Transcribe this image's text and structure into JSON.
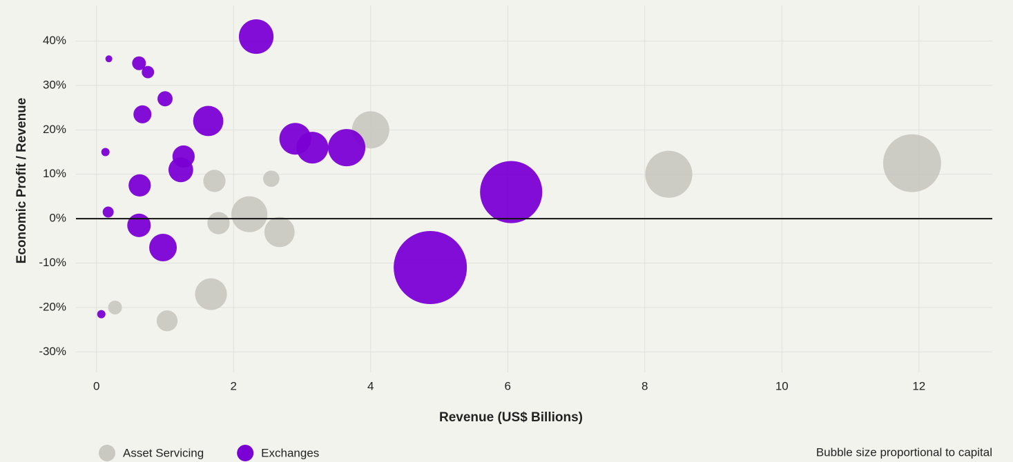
{
  "chart_data": {
    "type": "bubble",
    "x_label": "Revenue (US$ Billions)",
    "y_label": "Economic Profit / Revenue",
    "note": "Bubble size proportional to capital",
    "xlim": [
      -0.3,
      13.07
    ],
    "ylim": [
      -34.6,
      48
    ],
    "xticks": [
      0,
      2,
      4,
      6,
      8,
      10,
      12
    ],
    "yticks": [
      {
        "value": -30,
        "label": "-30%"
      },
      {
        "value": -20,
        "label": "-20%"
      },
      {
        "value": -10,
        "label": "-10%"
      },
      {
        "value": 0,
        "label": "0%"
      },
      {
        "value": 10,
        "label": "10%"
      },
      {
        "value": 20,
        "label": "20%"
      },
      {
        "value": 30,
        "label": "30%"
      },
      {
        "value": 40,
        "label": "40%"
      }
    ],
    "grid": true,
    "legend": "bottom-left",
    "series": [
      {
        "name": "Asset Servicing",
        "color": "#c9c8c1",
        "x": [
          4.0,
          1.72,
          2.55,
          2.23,
          1.78,
          2.67,
          1.67,
          0.27,
          1.03,
          8.35,
          11.9
        ],
        "values": [
          20,
          8.5,
          9,
          1,
          -1,
          -3,
          -17,
          -20,
          -23,
          10,
          12.5
        ],
        "sizes": [
          7.3,
          2.6,
          1.4,
          6.8,
          2.6,
          4.8,
          5.3,
          1.0,
          2.3,
          11.6,
          17.6
        ]
      },
      {
        "name": "Exchanges",
        "color": "#7a00d4",
        "x": [
          2.33,
          0.18,
          0.62,
          0.75,
          1.0,
          0.67,
          1.63,
          0.13,
          1.27,
          1.23,
          2.9,
          3.15,
          3.65,
          0.63,
          6.05,
          0.17,
          0.62,
          0.97,
          4.87,
          0.07
        ],
        "values": [
          41,
          36,
          35,
          33,
          27,
          23.5,
          22,
          15,
          14,
          11,
          18,
          16,
          16,
          7.5,
          6,
          1.5,
          -1.5,
          -6.5,
          -11,
          -21.5
        ],
        "sizes": [
          6.3,
          0.25,
          1.0,
          0.8,
          1.2,
          1.7,
          4.8,
          0.36,
          2.6,
          3.2,
          5.3,
          5.3,
          7.3,
          2.6,
          20.3,
          0.64,
          2.9,
          4.0,
          28.1,
          0.36
        ]
      }
    ]
  }
}
